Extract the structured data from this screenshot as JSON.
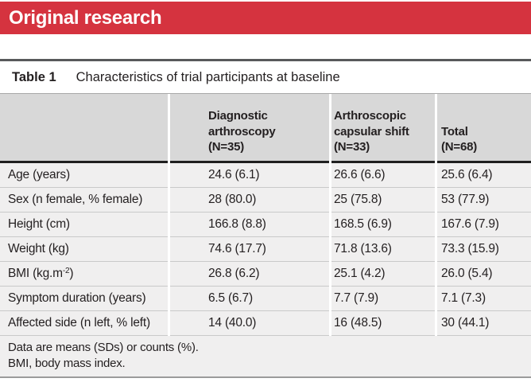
{
  "banner": {
    "title": "Original research"
  },
  "table": {
    "caption_label": "Table 1",
    "caption_title": "Characteristics of trial participants at baseline",
    "columns": [
      "Diagnostic\narthroscopy\n(N=35)",
      "Arthroscopic\ncapsular shift\n(N=33)",
      "Total\n(N=68)"
    ],
    "rows": [
      {
        "label": "Age (years)",
        "values": [
          "24.6 (6.1)",
          "26.6 (6.6)",
          "25.6 (6.4)"
        ]
      },
      {
        "label": "Sex (n female, % female)",
        "values": [
          "28 (80.0)",
          "25 (75.8)",
          "53 (77.9)"
        ]
      },
      {
        "label": "Height (cm)",
        "values": [
          "166.8 (8.8)",
          "168.5 (6.9)",
          "167.6 (7.9)"
        ]
      },
      {
        "label": "Weight (kg)",
        "values": [
          "74.6 (17.7)",
          "71.8 (13.6)",
          "73.3 (15.9)"
        ]
      },
      {
        "label_parts": [
          "BMI (kg.m",
          "-2",
          ")"
        ],
        "values": [
          "26.8 (6.2)",
          "25.1 (4.2)",
          "26.0 (5.4)"
        ]
      },
      {
        "label": "Symptom duration (years)",
        "values": [
          "6.5 (6.7)",
          "7.7 (7.9)",
          "7.1 (7.3)"
        ]
      },
      {
        "label": "Affected side (n left, % left)",
        "values": [
          "14 (40.0)",
          "16 (48.5)",
          "30 (44.1)"
        ]
      }
    ],
    "footnotes": [
      "Data are means (SDs) or counts (%).",
      "BMI, body mass index."
    ]
  },
  "colors": {
    "banner_red": "#d5333f",
    "rule_dark_gray": "#58595b",
    "header_gray": "#d8d8d8",
    "row_gray": "#f0efef",
    "header_black_rule": "#1f1f1f",
    "row_separator": "#c9c9c9",
    "bottom_rule": "#9b9b9b",
    "text": "#231f20"
  }
}
